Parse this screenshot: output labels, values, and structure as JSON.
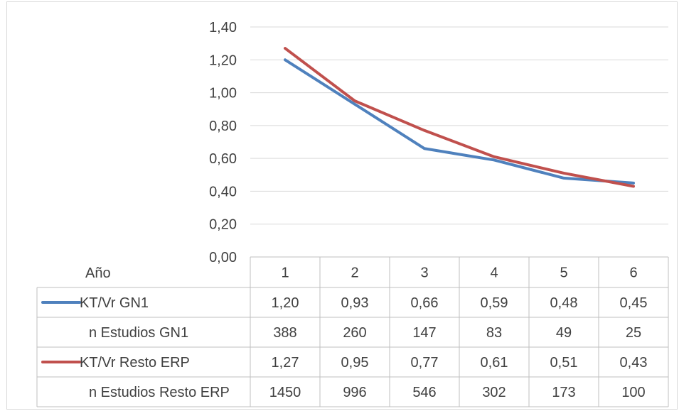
{
  "chart_data": {
    "type": "line",
    "x_axis_title": "Año",
    "categories": [
      "1",
      "2",
      "3",
      "4",
      "5",
      "6"
    ],
    "y_ticks": [
      "0,00",
      "0,20",
      "0,40",
      "0,60",
      "0,80",
      "1,00",
      "1,20",
      "1,40"
    ],
    "ylim": [
      0,
      1.4
    ],
    "grid": true,
    "legend": "data-table",
    "series": [
      {
        "name": "KT/Vr GN1",
        "color": "#4f81bd",
        "values": [
          1.2,
          0.93,
          0.66,
          0.59,
          0.48,
          0.45
        ]
      },
      {
        "name": "KT/Vr Resto ERP",
        "color": "#c0504d",
        "values": [
          1.27,
          0.95,
          0.77,
          0.61,
          0.51,
          0.43
        ]
      }
    ],
    "table": {
      "rows": [
        {
          "label": "KT/Vr GN1",
          "legend_key": "KT/Vr GN1",
          "cells": [
            "1,20",
            "0,93",
            "0,66",
            "0,59",
            "0,48",
            "0,45"
          ]
        },
        {
          "label": "n Estudios GN1",
          "legend_key": null,
          "cells": [
            "388",
            "260",
            "147",
            "83",
            "49",
            "25"
          ]
        },
        {
          "label": "KT/Vr Resto ERP",
          "legend_key": "KT/Vr Resto ERP",
          "cells": [
            "1,27",
            "0,95",
            "0,77",
            "0,61",
            "0,51",
            "0,43"
          ]
        },
        {
          "label": "n Estudios Resto ERP",
          "legend_key": null,
          "cells": [
            "1450",
            "996",
            "546",
            "302",
            "173",
            "100"
          ]
        }
      ]
    }
  }
}
